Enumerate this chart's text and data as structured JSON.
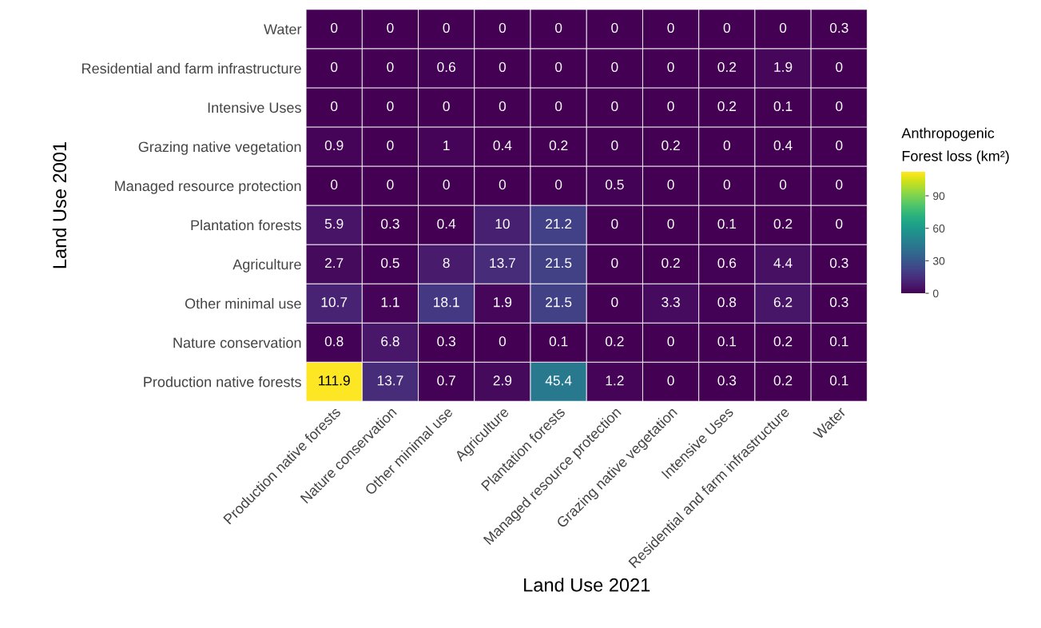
{
  "chart_data": {
    "type": "heatmap",
    "xlabel": "Land Use 2021",
    "ylabel": "Land Use 2001",
    "clabel": "Anthropogenic\nForest loss (km²)",
    "categories": [
      "Production native forests",
      "Nature conservation",
      "Other minimal use",
      "Agriculture",
      "Plantation forests",
      "Managed resource protection",
      "Grazing native vegetation",
      "Intensive Uses",
      "Residential and farm infrastructure",
      "Water"
    ],
    "y_categories": [
      "Water",
      "Residential and farm infrastructure",
      "Intensive Uses",
      "Grazing native vegetation",
      "Managed resource protection",
      "Plantation forests",
      "Agriculture",
      "Other minimal use",
      "Nature conservation",
      "Production native forests"
    ],
    "cells": [
      [
        0,
        0,
        0,
        0,
        0,
        0,
        0,
        0,
        0,
        0.3
      ],
      [
        0,
        0,
        0.6,
        0,
        0,
        0,
        0,
        0.2,
        1.9,
        0
      ],
      [
        0,
        0,
        0,
        0,
        0,
        0,
        0,
        0.2,
        0.1,
        0
      ],
      [
        0.9,
        0,
        1,
        0.4,
        0.2,
        0,
        0.2,
        0,
        0.4,
        0
      ],
      [
        0,
        0,
        0,
        0,
        0,
        0.5,
        0,
        0,
        0,
        0
      ],
      [
        5.9,
        0.3,
        0.4,
        10,
        21.2,
        0,
        0,
        0.1,
        0.2,
        0
      ],
      [
        2.7,
        0.5,
        8,
        13.7,
        21.5,
        0,
        0.2,
        0.6,
        4.4,
        0.3
      ],
      [
        10.7,
        1.1,
        18.1,
        1.9,
        21.5,
        0,
        3.3,
        0.8,
        6.2,
        0.3
      ],
      [
        0.8,
        6.8,
        0.3,
        0,
        0.1,
        0.2,
        0,
        0.1,
        0.2,
        0.1
      ],
      [
        111.9,
        13.7,
        0.7,
        2.9,
        45.4,
        1.2,
        0,
        0.3,
        0.2,
        0.1
      ]
    ],
    "clim": [
      0,
      111.9
    ],
    "cticks": [
      0,
      30,
      60,
      90
    ],
    "data_labels": true
  }
}
